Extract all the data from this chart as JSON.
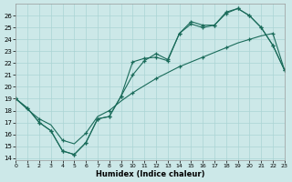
{
  "xlabel": "Humidex (Indice chaleur)",
  "xlim": [
    0,
    23
  ],
  "ylim": [
    13.8,
    27.0
  ],
  "xticks": [
    0,
    1,
    2,
    3,
    4,
    5,
    6,
    7,
    8,
    9,
    10,
    11,
    12,
    13,
    14,
    15,
    16,
    17,
    18,
    19,
    20,
    21,
    22,
    23
  ],
  "yticks": [
    14,
    15,
    16,
    17,
    18,
    19,
    20,
    21,
    22,
    23,
    24,
    25,
    26
  ],
  "bg_color": "#cce8e8",
  "grid_color": "#aad4d4",
  "line_color": "#1a6b5a",
  "line1_x": [
    0,
    1,
    2,
    3,
    4,
    5,
    6,
    7,
    8,
    9,
    10,
    11,
    12,
    13,
    14,
    15,
    16,
    17,
    18,
    19,
    20,
    21,
    22,
    23
  ],
  "line1_y": [
    19.0,
    18.2,
    17.0,
    16.3,
    14.6,
    14.3,
    15.3,
    17.3,
    17.5,
    19.2,
    22.1,
    22.4,
    22.5,
    22.2,
    24.5,
    25.5,
    25.2,
    25.2,
    26.2,
    26.6,
    26.0,
    25.0,
    23.5,
    21.4
  ],
  "line2_x": [
    0,
    1,
    2,
    3,
    4,
    5,
    6,
    7,
    8,
    9,
    10,
    11,
    12,
    13,
    14,
    15,
    16,
    17,
    18,
    19,
    20,
    21,
    22,
    23
  ],
  "line2_y": [
    19.0,
    18.2,
    17.0,
    16.3,
    14.6,
    14.3,
    15.3,
    17.3,
    17.5,
    19.2,
    21.0,
    22.2,
    22.8,
    22.3,
    24.5,
    25.3,
    25.0,
    25.2,
    26.3,
    26.6,
    26.0,
    25.0,
    23.5,
    21.4
  ],
  "line3_x": [
    0,
    1,
    2,
    3,
    4,
    5,
    6,
    7,
    8,
    9,
    10,
    11,
    12,
    13,
    14,
    15,
    16,
    17,
    18,
    19,
    20,
    21,
    22,
    23
  ],
  "line3_y": [
    19.0,
    18.1,
    17.3,
    16.8,
    15.5,
    15.2,
    16.1,
    17.5,
    18.0,
    18.8,
    19.5,
    20.1,
    20.7,
    21.2,
    21.7,
    22.1,
    22.5,
    22.9,
    23.3,
    23.7,
    24.0,
    24.3,
    24.5,
    21.4
  ]
}
